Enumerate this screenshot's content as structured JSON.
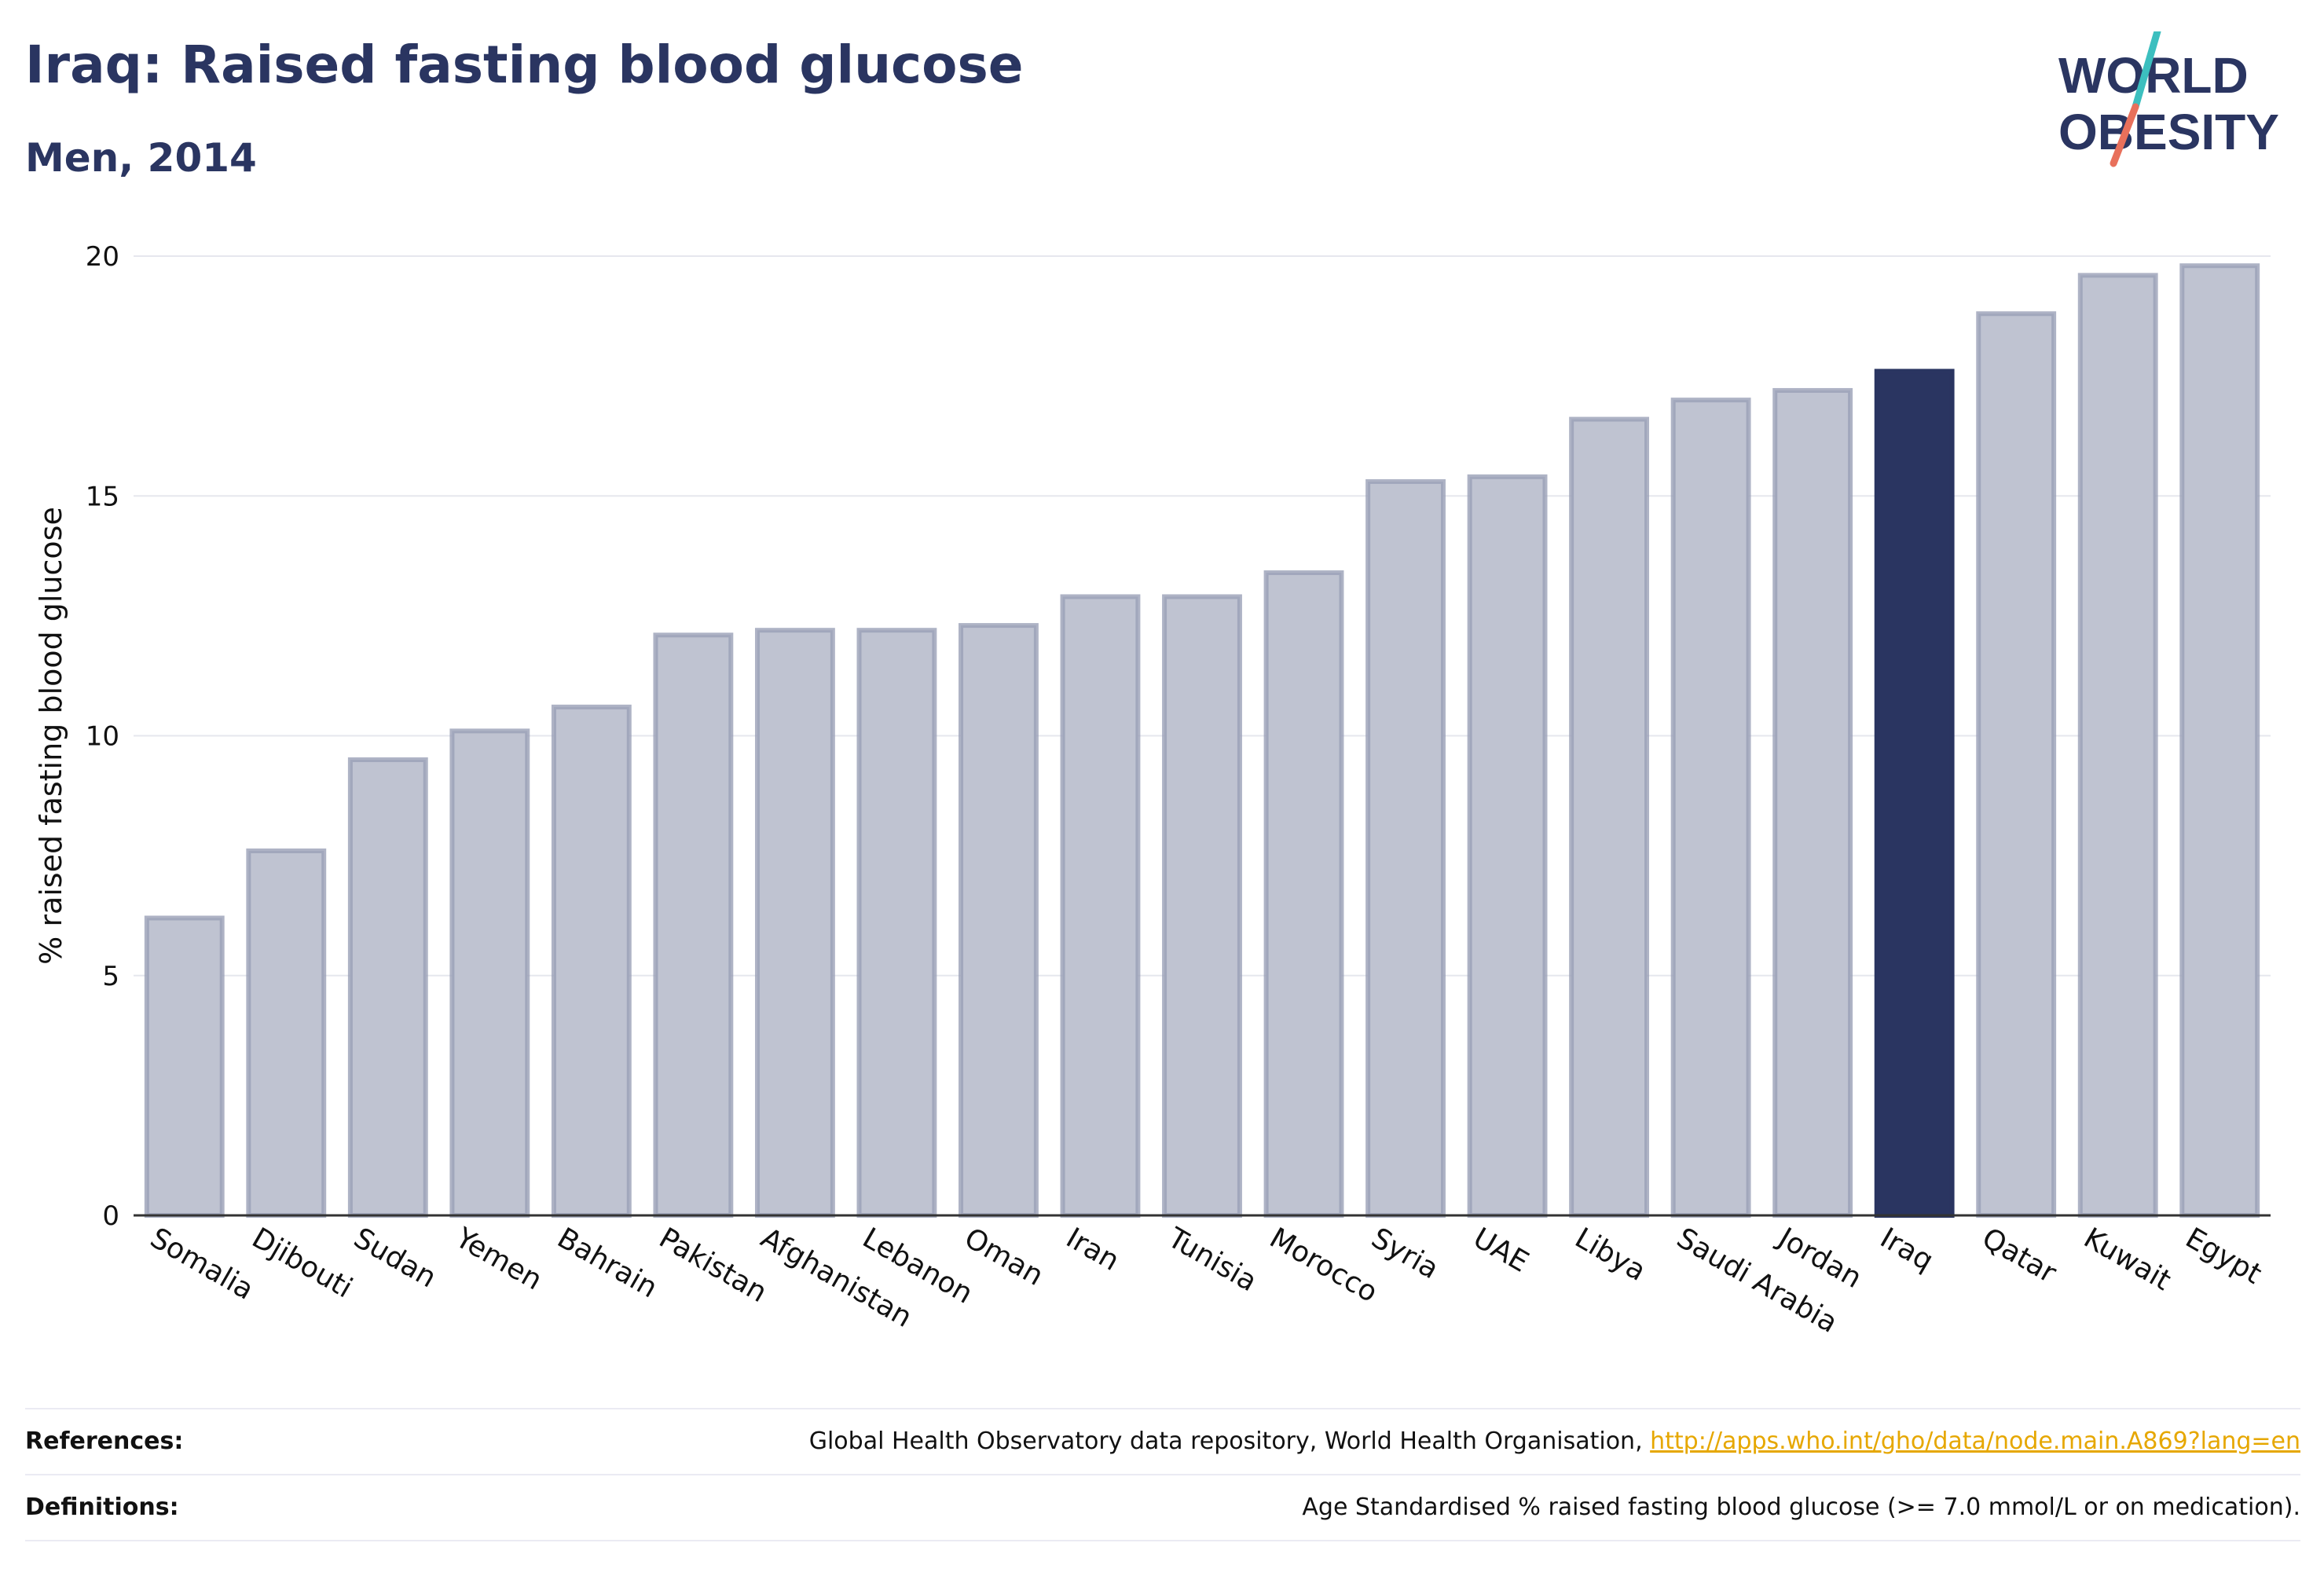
{
  "title": "Iraq: Raised fasting blood glucose",
  "subtitle": "Men, 2014",
  "logo": {
    "line1": "WORLD",
    "line2": "OBESITY"
  },
  "colors": {
    "highlight": "#2a3561",
    "bar": "#bfc3d1",
    "bar_stroke": "#9aa0b7",
    "logo_teal": "#3cbfbf",
    "logo_coral": "#e8705b",
    "link": "#e6a700"
  },
  "chart_data": {
    "type": "bar",
    "categories": [
      "Somalia",
      "Djibouti",
      "Sudan",
      "Yemen",
      "Bahrain",
      "Pakistan",
      "Afghanistan",
      "Lebanon",
      "Oman",
      "Iran",
      "Tunisia",
      "Morocco",
      "Syria",
      "UAE",
      "Libya",
      "Saudi Arabia",
      "Jordan",
      "Iraq",
      "Qatar",
      "Kuwait",
      "Egypt"
    ],
    "values": [
      6.2,
      7.6,
      9.5,
      10.1,
      10.6,
      12.1,
      12.2,
      12.2,
      12.3,
      12.9,
      12.9,
      13.4,
      15.3,
      15.4,
      16.6,
      17.0,
      17.2,
      17.6,
      18.8,
      19.6,
      19.8
    ],
    "highlight": "Iraq",
    "ylabel": "% raised fasting blood glucose",
    "xlabel": "",
    "ylim": [
      0,
      20
    ],
    "yticks": [
      0,
      5,
      10,
      15,
      20
    ],
    "grid": true
  },
  "footer": {
    "references_label": "References:",
    "references_text": "Global Health Observatory data repository, World Health Organisation, ",
    "references_link": "http://apps.who.int/gho/data/node.main.A869?lang=en",
    "definitions_label": "Definitions:",
    "definitions_text": "Age Standardised % raised fasting blood glucose (>= 7.0 mmol/L or on medication)."
  }
}
